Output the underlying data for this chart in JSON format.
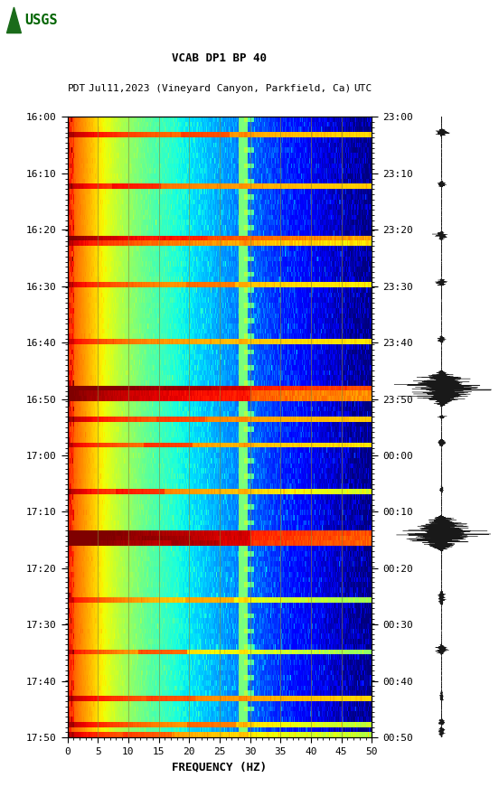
{
  "title_line1": "VCAB DP1 BP 40",
  "title_line2_left": "PDT",
  "title_line2_mid": "Jul11,2023 (Vineyard Canyon, Parkfield, Ca)",
  "title_line2_right": "UTC",
  "xlabel": "FREQUENCY (HZ)",
  "freq_min": 0,
  "freq_max": 50,
  "freq_ticks": [
    0,
    5,
    10,
    15,
    20,
    25,
    30,
    35,
    40,
    45,
    50
  ],
  "time_ticks_left": [
    "16:00",
    "16:10",
    "16:20",
    "16:30",
    "16:40",
    "16:50",
    "17:00",
    "17:10",
    "17:20",
    "17:30",
    "17:40",
    "17:50"
  ],
  "time_ticks_right": [
    "23:00",
    "23:10",
    "23:20",
    "23:30",
    "23:40",
    "23:50",
    "00:00",
    "00:10",
    "00:20",
    "00:30",
    "00:40",
    "00:50"
  ],
  "background_color": "#ffffff",
  "spectrogram_cmap": "jet",
  "vgrid_color": "#888833",
  "vgrid_alpha": 0.7,
  "figure_width": 5.52,
  "figure_height": 8.92,
  "dpi": 100
}
